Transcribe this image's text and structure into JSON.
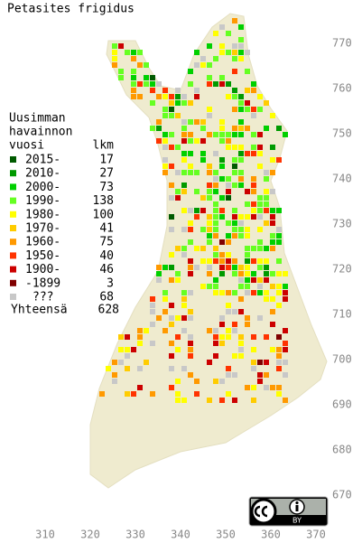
{
  "header": {
    "title": "Petasites frigidus"
  },
  "legend": {
    "heading": [
      "Uusimman",
      "havainnon"
    ],
    "year_label": "vuosi",
    "count_label": "lkm",
    "rows": [
      {
        "label": "2015-",
        "count": 17,
        "color": "#005a00"
      },
      {
        "label": "2010-",
        "count": 27,
        "color": "#009a00"
      },
      {
        "label": "2000-",
        "count": 73,
        "color": "#00d000"
      },
      {
        "label": "1990-",
        "count": 138,
        "color": "#66ff22"
      },
      {
        "label": "1980-",
        "count": 100,
        "color": "#ffff00"
      },
      {
        "label": "1970-",
        "count": 41,
        "color": "#ffcc00"
      },
      {
        "label": "1960-",
        "count": 75,
        "color": "#ff9900"
      },
      {
        "label": "1950-",
        "count": 40,
        "color": "#ff3300"
      },
      {
        "label": "1900-",
        "count": 46,
        "color": "#cc0000"
      },
      {
        "label": "-1899",
        "count": 3,
        "color": "#800000"
      },
      {
        "label": "???",
        "count": 68,
        "color": "#c8c8c8"
      }
    ],
    "total_label": "Yhteensä",
    "total": 628
  },
  "axes": {
    "y_labels": [
      770,
      760,
      750,
      740,
      730,
      720,
      710,
      700,
      690,
      680,
      670
    ],
    "x_labels": [
      310,
      320,
      330,
      340,
      350,
      360,
      370
    ]
  },
  "badge": {
    "text": "BY"
  }
}
